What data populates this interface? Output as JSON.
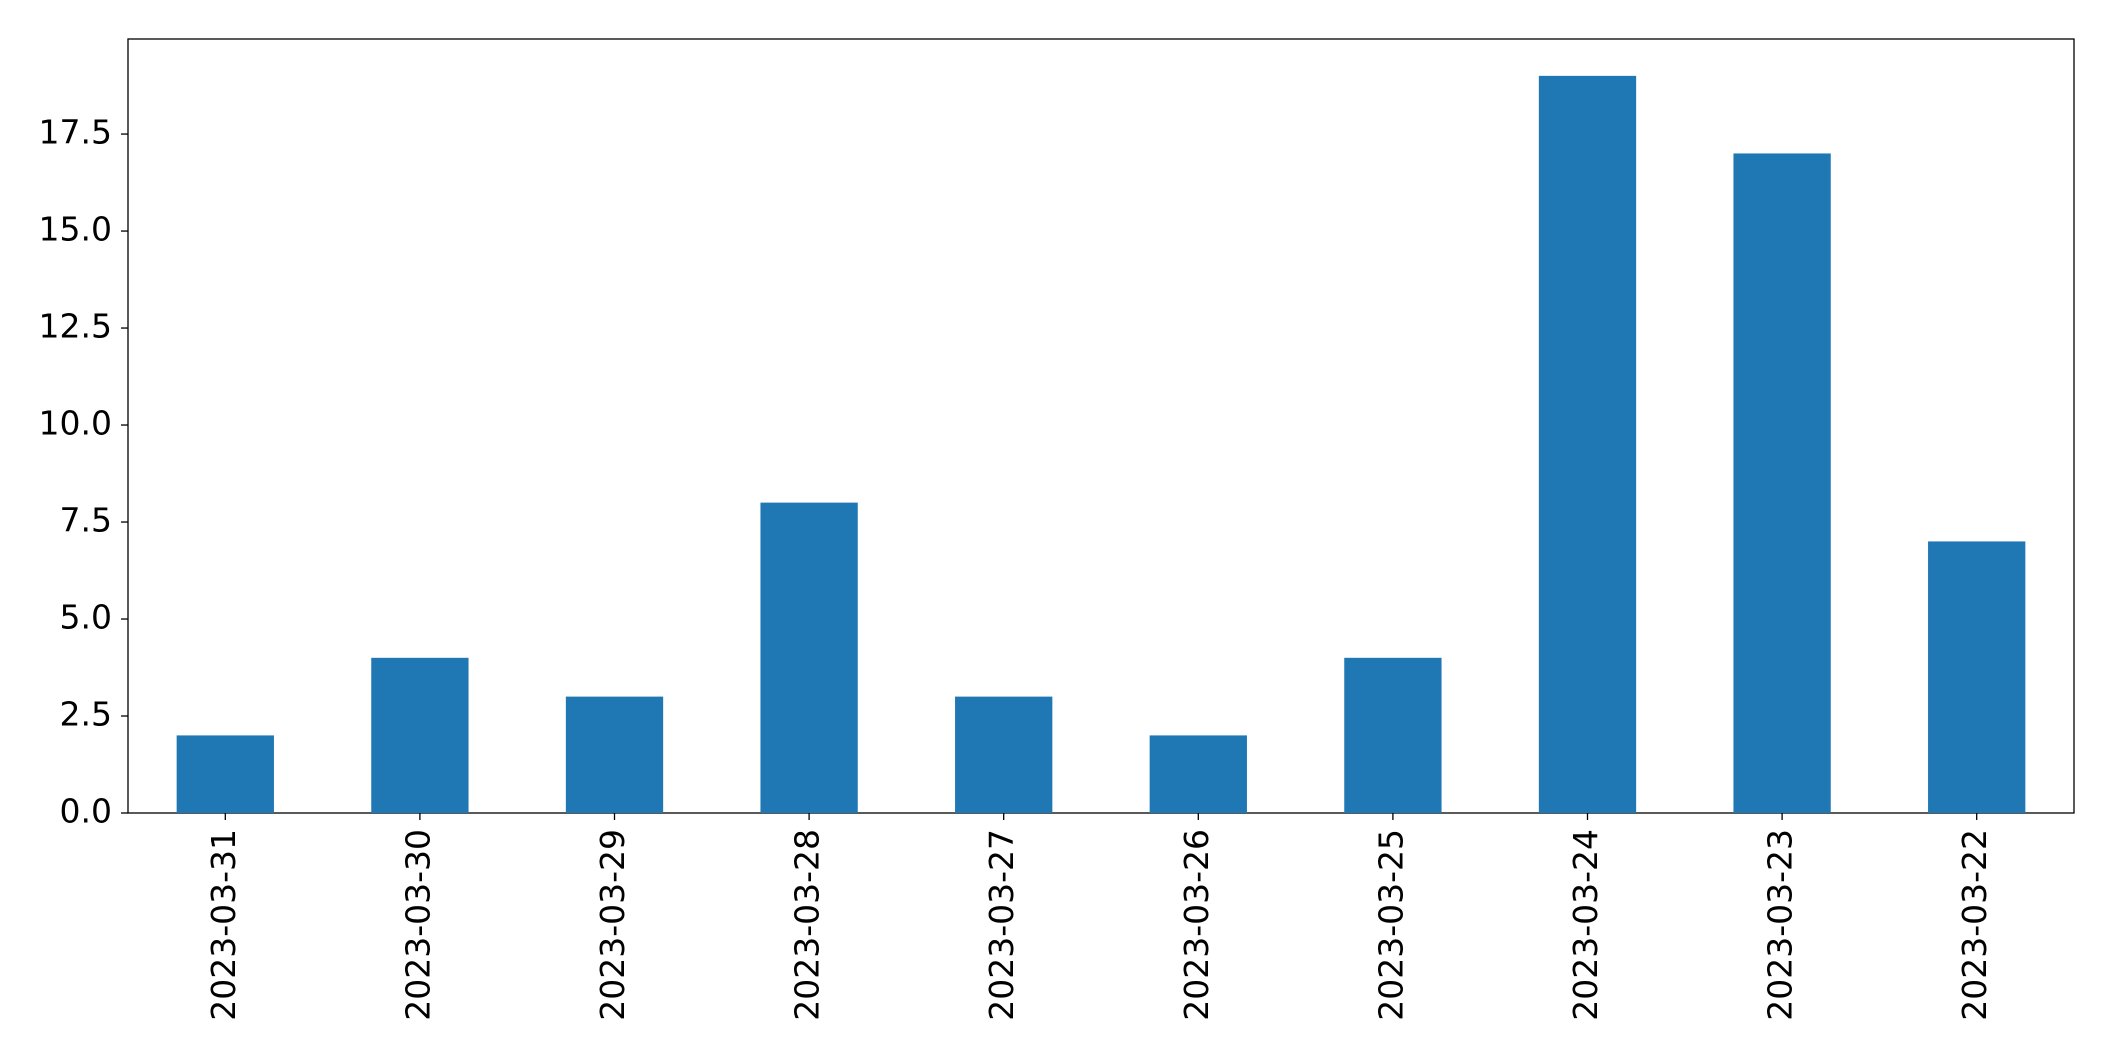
{
  "chart_data": {
    "type": "bar",
    "categories": [
      "2023-03-31",
      "2023-03-30",
      "2023-03-29",
      "2023-03-28",
      "2023-03-27",
      "2023-03-26",
      "2023-03-25",
      "2023-03-24",
      "2023-03-23",
      "2023-03-22"
    ],
    "values": [
      2,
      4,
      3,
      8,
      3,
      2,
      4,
      19,
      17,
      7
    ],
    "color": "#1f77b4",
    "ylim": [
      0,
      19.95
    ],
    "yticks": [
      {
        "value": 0,
        "label": "0.0"
      },
      2.5,
      {
        "value": 5,
        "label": "5.0"
      },
      7.5,
      {
        "value": 10,
        "label": "10.0"
      },
      12.5,
      {
        "value": 15,
        "label": "15.0"
      },
      17.5
    ],
    "grid": false
  }
}
